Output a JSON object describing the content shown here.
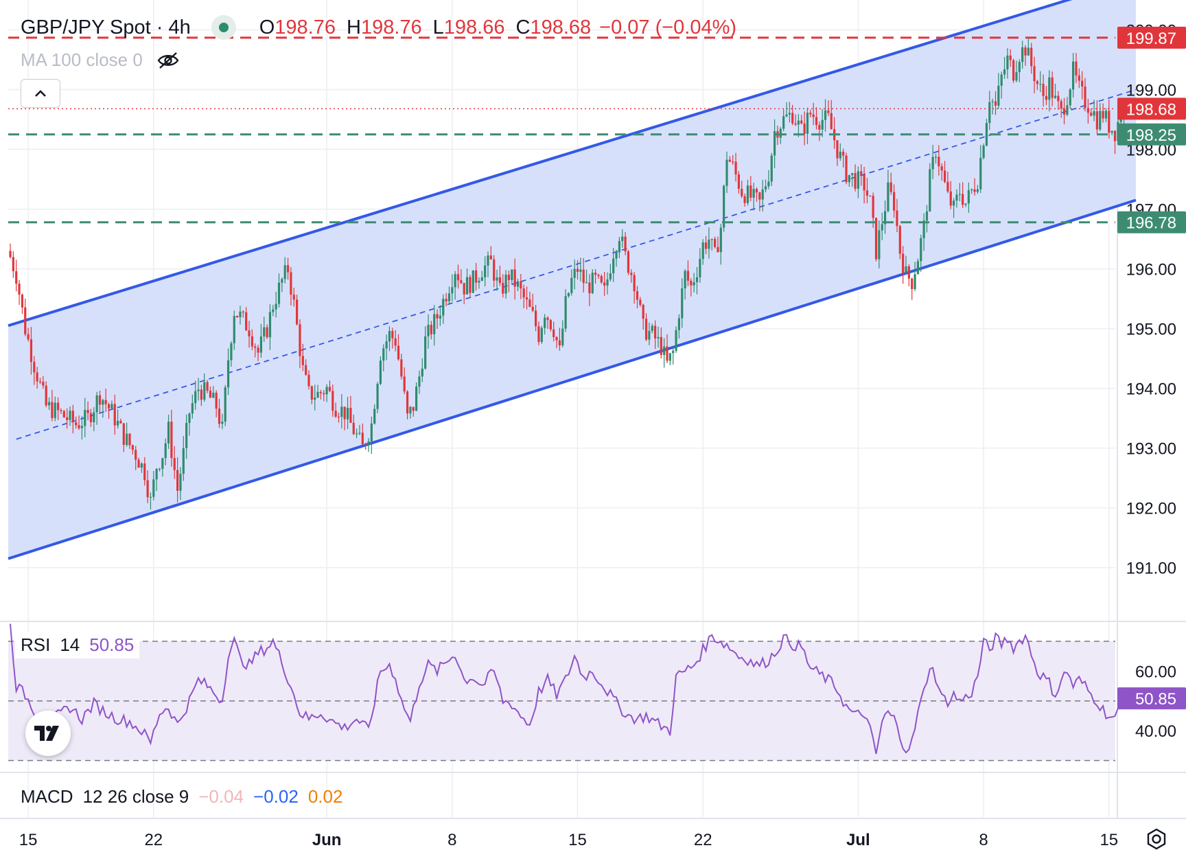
{
  "header": {
    "title": "GBP/JPY Spot · 4h",
    "ohlc": {
      "o_key": "O",
      "o_val": "198.76",
      "h_key": "H",
      "h_val": "198.76",
      "l_key": "L",
      "l_val": "198.66",
      "c_key": "C",
      "c_val": "198.68",
      "change": "−0.07 (−0.04%)"
    },
    "ma_label": "MA 100 close 0"
  },
  "chart_data": {
    "type": "candlestick",
    "symbol": "GBP/JPY Spot",
    "interval": "4h",
    "price_axis": {
      "range": [
        190.1,
        200.5
      ],
      "ticks": [
        191,
        192,
        193,
        194,
        195,
        196,
        197,
        198,
        199,
        200
      ],
      "tick_labels": [
        "191.00",
        "192.00",
        "193.00",
        "194.00",
        "195.00",
        "196.00",
        "197.00",
        "198.00",
        "199.00",
        "200.00"
      ]
    },
    "date_axis": {
      "labels": [
        "15",
        "22",
        "Jun",
        "8",
        "15",
        "22",
        "Jul",
        "8",
        "15"
      ],
      "label_candle_index": [
        6,
        48,
        106,
        148,
        190,
        232,
        284,
        326,
        368
      ]
    },
    "close_path": [
      [
        0,
        196.2
      ],
      [
        2,
        195.9
      ],
      [
        5,
        195.0
      ],
      [
        8,
        194.4
      ],
      [
        12,
        193.7
      ],
      [
        16,
        193.6
      ],
      [
        22,
        193.4
      ],
      [
        26,
        193.5
      ],
      [
        30,
        193.9
      ],
      [
        34,
        193.6
      ],
      [
        38,
        193.2
      ],
      [
        42,
        192.9
      ],
      [
        45,
        192.6
      ],
      [
        47,
        192.1
      ],
      [
        49,
        192.7
      ],
      [
        51,
        192.9
      ],
      [
        53,
        193.3
      ],
      [
        56,
        192.3
      ],
      [
        58,
        192.9
      ],
      [
        60,
        193.6
      ],
      [
        63,
        194.0
      ],
      [
        66,
        193.9
      ],
      [
        69,
        193.7
      ],
      [
        71,
        193.3
      ],
      [
        73,
        194.5
      ],
      [
        75,
        195.3
      ],
      [
        77,
        195.2
      ],
      [
        80,
        195.0
      ],
      [
        83,
        194.6
      ],
      [
        86,
        195.0
      ],
      [
        88,
        195.4
      ],
      [
        91,
        195.8
      ],
      [
        93,
        196.0
      ],
      [
        95,
        195.4
      ],
      [
        98,
        194.3
      ],
      [
        100,
        193.9
      ],
      [
        103,
        193.9
      ],
      [
        106,
        194.0
      ],
      [
        109,
        193.7
      ],
      [
        112,
        193.6
      ],
      [
        115,
        193.3
      ],
      [
        118,
        193.0
      ],
      [
        121,
        193.4
      ],
      [
        124,
        194.6
      ],
      [
        127,
        194.9
      ],
      [
        129,
        194.8
      ],
      [
        131,
        194.2
      ],
      [
        133,
        193.5
      ],
      [
        135,
        193.7
      ],
      [
        137,
        194.2
      ],
      [
        139,
        194.8
      ],
      [
        141,
        195.0
      ],
      [
        143,
        195.2
      ],
      [
        146,
        195.6
      ],
      [
        149,
        196.0
      ],
      [
        152,
        195.7
      ],
      [
        155,
        195.8
      ],
      [
        158,
        196.0
      ],
      [
        161,
        196.1
      ],
      [
        164,
        195.6
      ],
      [
        167,
        195.9
      ],
      [
        170,
        195.7
      ],
      [
        172,
        195.5
      ],
      [
        175,
        195.2
      ],
      [
        177,
        194.9
      ],
      [
        179,
        195.3
      ],
      [
        182,
        195.0
      ],
      [
        184,
        194.6
      ],
      [
        186,
        195.4
      ],
      [
        188,
        195.8
      ],
      [
        190,
        196.0
      ],
      [
        193,
        195.7
      ],
      [
        196,
        195.8
      ],
      [
        199,
        195.6
      ],
      [
        202,
        196.3
      ],
      [
        204,
        196.6
      ],
      [
        206,
        196.2
      ],
      [
        209,
        195.8
      ],
      [
        212,
        195.0
      ],
      [
        215,
        194.9
      ],
      [
        218,
        194.7
      ],
      [
        220,
        194.4
      ],
      [
        222,
        194.6
      ],
      [
        224,
        195.3
      ],
      [
        226,
        195.9
      ],
      [
        228,
        195.7
      ],
      [
        230,
        196.0
      ],
      [
        232,
        196.4
      ],
      [
        234,
        196.5
      ],
      [
        236,
        196.2
      ],
      [
        238,
        196.7
      ],
      [
        240,
        197.9
      ],
      [
        242,
        197.7
      ],
      [
        245,
        197.3
      ],
      [
        248,
        197.2
      ],
      [
        251,
        197.1
      ],
      [
        254,
        197.6
      ],
      [
        256,
        198.3
      ],
      [
        259,
        198.5
      ],
      [
        262,
        198.6
      ],
      [
        265,
        198.3
      ],
      [
        268,
        198.6
      ],
      [
        271,
        198.5
      ],
      [
        274,
        198.5
      ],
      [
        277,
        198.0
      ],
      [
        280,
        197.6
      ],
      [
        283,
        197.5
      ],
      [
        286,
        197.4
      ],
      [
        288,
        197.1
      ],
      [
        290,
        196.3
      ],
      [
        292,
        196.8
      ],
      [
        294,
        197.3
      ],
      [
        296,
        197.1
      ],
      [
        298,
        196.3
      ],
      [
        300,
        195.9
      ],
      [
        302,
        195.8
      ],
      [
        304,
        196.2
      ],
      [
        306,
        196.7
      ],
      [
        308,
        197.5
      ],
      [
        310,
        198.0
      ],
      [
        312,
        197.6
      ],
      [
        314,
        197.2
      ],
      [
        316,
        197.0
      ],
      [
        318,
        197.3
      ],
      [
        320,
        197.1
      ],
      [
        322,
        197.3
      ],
      [
        324,
        197.5
      ],
      [
        326,
        198.2
      ],
      [
        328,
        198.9
      ],
      [
        330,
        198.7
      ],
      [
        332,
        199.2
      ],
      [
        334,
        199.5
      ],
      [
        336,
        199.3
      ],
      [
        338,
        199.6
      ],
      [
        340,
        199.7
      ],
      [
        342,
        199.4
      ],
      [
        344,
        199.1
      ],
      [
        346,
        198.9
      ],
      [
        348,
        199.1
      ],
      [
        350,
        198.8
      ],
      [
        352,
        198.6
      ],
      [
        354,
        198.9
      ],
      [
        356,
        199.3
      ],
      [
        358,
        199.0
      ],
      [
        360,
        198.8
      ],
      [
        362,
        198.7
      ],
      [
        364,
        198.5
      ],
      [
        366,
        198.6
      ],
      [
        368,
        198.4
      ],
      [
        370,
        198.3
      ],
      [
        372,
        198.6
      ],
      [
        374,
        198.68
      ]
    ],
    "channel": {
      "upper": {
        "from": [
          0,
          195.05
        ],
        "to": [
          377,
          200.85
        ]
      },
      "lower": {
        "from": [
          0,
          191.15
        ],
        "to": [
          377,
          197.15
        ]
      },
      "median": {
        "from": [
          2,
          193.15
        ],
        "to": [
          377,
          199.0
        ]
      },
      "fill": "#d5defa",
      "line_color": "#3359e6"
    },
    "horizontal_levels": [
      {
        "price": 199.87,
        "color": "#e0363b",
        "style": "dashed",
        "label": "199.87"
      },
      {
        "price": 198.25,
        "color": "#3d8c72",
        "style": "dashed",
        "label": "198.25"
      },
      {
        "price": 196.78,
        "color": "#3d8c72",
        "style": "dashed",
        "label": "196.78"
      }
    ],
    "last_price": {
      "price": 198.68,
      "label": "198.68",
      "color": "#e0363b",
      "style": "dotted"
    },
    "candle_colors": {
      "up": "#2e8b6e",
      "down": "#e0363b"
    },
    "rsi": {
      "label": "RSI",
      "period": "14",
      "value": "50.85",
      "range": [
        26,
        76
      ],
      "ticks": [
        40,
        60
      ],
      "tick_labels": [
        "40.00",
        "60.00"
      ],
      "bands": [
        70,
        50,
        30
      ],
      "value_tag": "50.85",
      "color": "#8e54c8",
      "band_fill": "#efeaf8",
      "points": [
        [
          0,
          75
        ],
        [
          2,
          55
        ],
        [
          5,
          52
        ],
        [
          8,
          47
        ],
        [
          12,
          42
        ],
        [
          16,
          45
        ],
        [
          20,
          48
        ],
        [
          24,
          44
        ],
        [
          28,
          49
        ],
        [
          32,
          46
        ],
        [
          36,
          44
        ],
        [
          40,
          43
        ],
        [
          44,
          40
        ],
        [
          47,
          36
        ],
        [
          50,
          46
        ],
        [
          53,
          48
        ],
        [
          56,
          42
        ],
        [
          60,
          50
        ],
        [
          63,
          57
        ],
        [
          66,
          55
        ],
        [
          69,
          52
        ],
        [
          71,
          50
        ],
        [
          73,
          66
        ],
        [
          75,
          70
        ],
        [
          77,
          64
        ],
        [
          80,
          62
        ],
        [
          83,
          66
        ],
        [
          86,
          68
        ],
        [
          88,
          70
        ],
        [
          91,
          63
        ],
        [
          94,
          55
        ],
        [
          97,
          46
        ],
        [
          100,
          44
        ],
        [
          104,
          46
        ],
        [
          108,
          43
        ],
        [
          112,
          41
        ],
        [
          116,
          44
        ],
        [
          120,
          40
        ],
        [
          124,
          60
        ],
        [
          127,
          62
        ],
        [
          129,
          58
        ],
        [
          131,
          50
        ],
        [
          134,
          43
        ],
        [
          137,
          56
        ],
        [
          140,
          62
        ],
        [
          143,
          60
        ],
        [
          146,
          63
        ],
        [
          149,
          66
        ],
        [
          152,
          57
        ],
        [
          155,
          58
        ],
        [
          158,
          55
        ],
        [
          162,
          60
        ],
        [
          165,
          50
        ],
        [
          168,
          49
        ],
        [
          171,
          45
        ],
        [
          174,
          42
        ],
        [
          177,
          53
        ],
        [
          180,
          57
        ],
        [
          183,
          52
        ],
        [
          186,
          57
        ],
        [
          189,
          65
        ],
        [
          192,
          58
        ],
        [
          195,
          60
        ],
        [
          198,
          56
        ],
        [
          201,
          52
        ],
        [
          204,
          48
        ],
        [
          207,
          45
        ],
        [
          210,
          44
        ],
        [
          213,
          45
        ],
        [
          216,
          43
        ],
        [
          219,
          41
        ],
        [
          221,
          40
        ],
        [
          223,
          58
        ],
        [
          226,
          60
        ],
        [
          229,
          62
        ],
        [
          232,
          67
        ],
        [
          235,
          72
        ],
        [
          238,
          70
        ],
        [
          241,
          68
        ],
        [
          244,
          65
        ],
        [
          247,
          64
        ],
        [
          250,
          62
        ],
        [
          253,
          63
        ],
        [
          256,
          66
        ],
        [
          259,
          71
        ],
        [
          262,
          69
        ],
        [
          265,
          68
        ],
        [
          268,
          61
        ],
        [
          271,
          59
        ],
        [
          274,
          57
        ],
        [
          277,
          54
        ],
        [
          280,
          48
        ],
        [
          283,
          45
        ],
        [
          286,
          46
        ],
        [
          288,
          40
        ],
        [
          290,
          32
        ],
        [
          292,
          43
        ],
        [
          294,
          46
        ],
        [
          296,
          44
        ],
        [
          298,
          38
        ],
        [
          300,
          34
        ],
        [
          302,
          36
        ],
        [
          304,
          46
        ],
        [
          306,
          53
        ],
        [
          308,
          62
        ],
        [
          310,
          58
        ],
        [
          312,
          51
        ],
        [
          314,
          50
        ],
        [
          316,
          52
        ],
        [
          318,
          50
        ],
        [
          320,
          51
        ],
        [
          322,
          53
        ],
        [
          324,
          58
        ],
        [
          326,
          70
        ],
        [
          328,
          67
        ],
        [
          330,
          71
        ],
        [
          332,
          69
        ],
        [
          334,
          71
        ],
        [
          336,
          68
        ],
        [
          338,
          70
        ],
        [
          340,
          72
        ],
        [
          342,
          66
        ],
        [
          344,
          60
        ],
        [
          346,
          58
        ],
        [
          348,
          56
        ],
        [
          350,
          52
        ],
        [
          352,
          57
        ],
        [
          354,
          60
        ],
        [
          356,
          55
        ],
        [
          358,
          57
        ],
        [
          360,
          55
        ],
        [
          362,
          52
        ],
        [
          364,
          50
        ],
        [
          366,
          47
        ],
        [
          368,
          45
        ],
        [
          370,
          44
        ],
        [
          372,
          48
        ],
        [
          374,
          50.85
        ]
      ]
    },
    "macd": {
      "label": "MACD",
      "params": "12 26 close 9",
      "histogram": "−0.04",
      "macd": "−0.02",
      "signal": "0.02",
      "colors": {
        "histogram": "#f2b6b8",
        "macd": "#2962ff",
        "signal": "#f57c00"
      }
    }
  }
}
